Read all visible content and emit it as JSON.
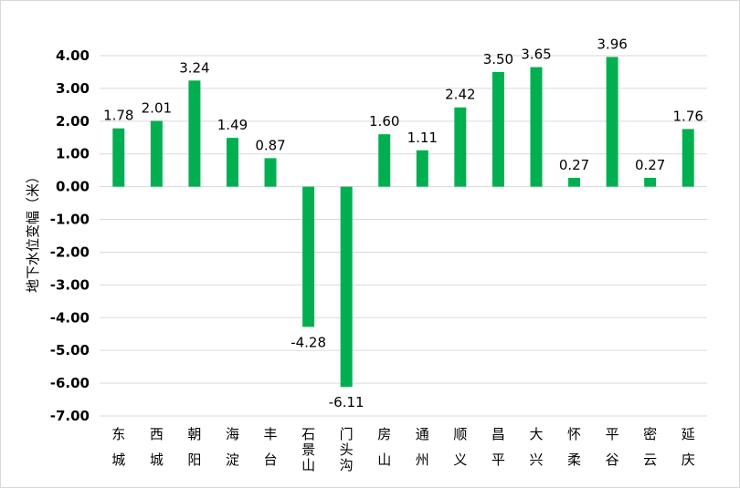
{
  "chart_data": {
    "type": "bar",
    "title": "",
    "ylabel": "地下水位变幅（米）",
    "xlabel": "",
    "ylim": [
      -7,
      4
    ],
    "y_ticks": [
      "4.00",
      "3.00",
      "2.00",
      "1.00",
      "0.00",
      "-1.00",
      "-2.00",
      "-3.00",
      "-4.00",
      "-5.00",
      "-6.00",
      "-7.00"
    ],
    "y_tick_values": [
      4,
      3,
      2,
      1,
      0,
      -1,
      -2,
      -3,
      -4,
      -5,
      -6,
      -7
    ],
    "categories": [
      "东城",
      "西城",
      "朝阳",
      "海淀",
      "丰台",
      "石景山",
      "门头沟",
      "房山",
      "通州",
      "顺义",
      "昌平",
      "大兴",
      "怀柔",
      "平谷",
      "密云",
      "延庆"
    ],
    "values": [
      1.78,
      2.01,
      3.24,
      1.49,
      0.87,
      -4.28,
      -6.11,
      1.6,
      1.11,
      2.42,
      3.5,
      3.65,
      0.27,
      3.96,
      0.27,
      1.76
    ],
    "value_labels": [
      "1.78",
      "2.01",
      "3.24",
      "1.49",
      "0.87",
      "-4.28",
      "-6.11",
      "1.60",
      "1.11",
      "2.42",
      "3.50",
      "3.65",
      "0.27",
      "3.96",
      "0.27",
      "1.76"
    ],
    "bar_color": "#00b050",
    "grid": true,
    "gridline_color": "#d9d9d9",
    "legend": "none"
  }
}
